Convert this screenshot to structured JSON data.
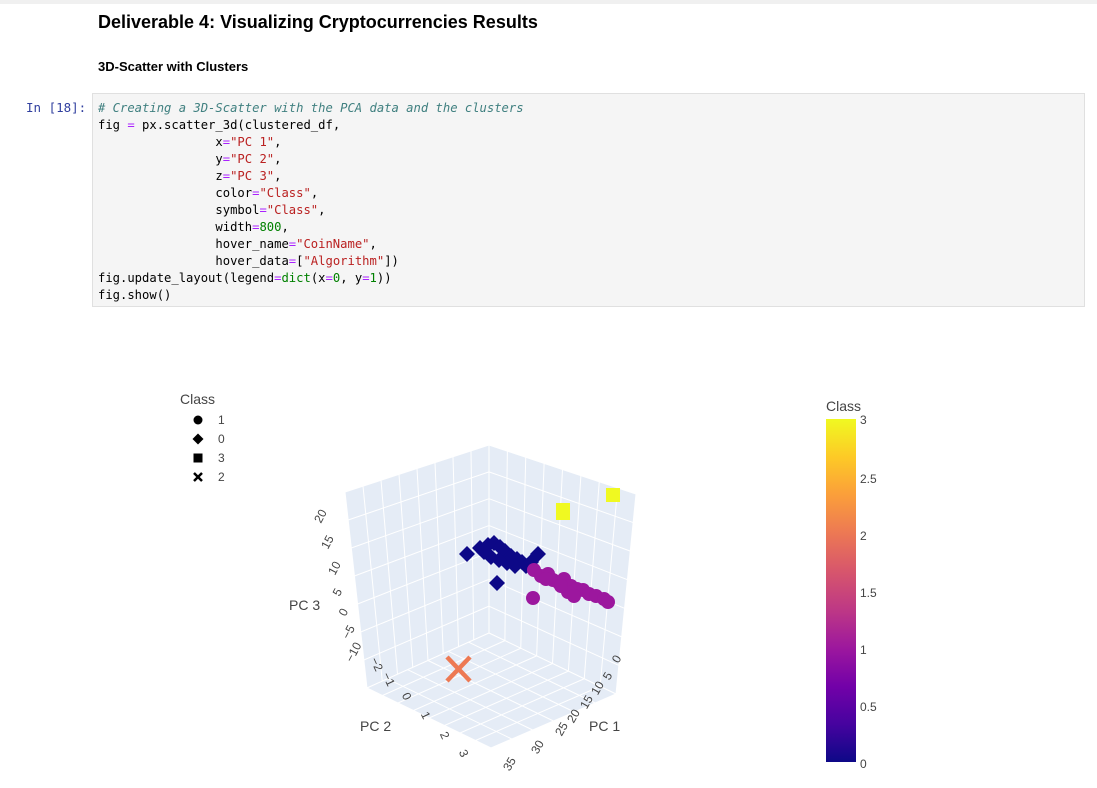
{
  "heading": "Deliverable 4: Visualizing Cryptocurrencies Results",
  "subheading": "3D-Scatter with Clusters",
  "prompt": "In [18]:",
  "code": {
    "comment": "# Creating a 3D-Scatter with the PCA data and the clusters",
    "l1a": "fig ",
    "l1b": "=",
    "l1c": " px.scatter_3d(clustered_df,",
    "kx": "x",
    "vx": "\"PC 1\"",
    "ky": "y",
    "vy": "\"PC 2\"",
    "kz": "z",
    "vz": "\"PC 3\"",
    "kcolor": "color",
    "vcolor": "\"Class\"",
    "ksymbol": "symbol",
    "vsymbol": "\"Class\"",
    "kwidth": "width",
    "vwidth": "800",
    "khover": "hover_name",
    "vhover": "\"CoinName\"",
    "khd": "hover_data",
    "vhd": "\"Algorithm\"",
    "upd_a": "fig.update_layout(legend",
    "upd_b": "dict",
    "upd_c": "(x",
    "upd_d": "0",
    "upd_e": ", y",
    "upd_f": "1",
    "upd_g": "))",
    "show": "fig.show()"
  },
  "chart_data": {
    "type": "scatter",
    "legend": {
      "title": "Class",
      "entries": [
        {
          "label": "1",
          "symbol": "circle"
        },
        {
          "label": "0",
          "symbol": "diamond"
        },
        {
          "label": "3",
          "symbol": "square"
        },
        {
          "label": "2",
          "symbol": "x"
        }
      ]
    },
    "axes": {
      "x": {
        "title": "PC 1",
        "ticks": [
          "0",
          "5",
          "10",
          "15",
          "20",
          "25",
          "30",
          "35"
        ]
      },
      "y": {
        "title": "PC 2",
        "ticks": [
          "−2",
          "−1",
          "0",
          "1",
          "2",
          "3"
        ]
      },
      "z": {
        "title": "PC 3",
        "ticks": [
          "20",
          "15",
          "10",
          "5",
          "0",
          "−5",
          "−10"
        ]
      }
    },
    "colorbar": {
      "title": "Class",
      "ticks": [
        "3",
        "2.5",
        "2",
        "1.5",
        "1",
        "0.5",
        "0"
      ]
    },
    "colors": {
      "class0": "#0d0887",
      "class1": "#9c179e",
      "class2": "#ed7953",
      "class3": "#f0f921"
    },
    "series": [
      {
        "name": "0",
        "symbol": "diamond",
        "color": "#0d0887"
      },
      {
        "name": "1",
        "symbol": "circle",
        "color": "#9c179e"
      },
      {
        "name": "3",
        "symbol": "square",
        "color": "#f0f921"
      },
      {
        "name": "2",
        "symbol": "x",
        "color": "#ed7953"
      }
    ]
  }
}
